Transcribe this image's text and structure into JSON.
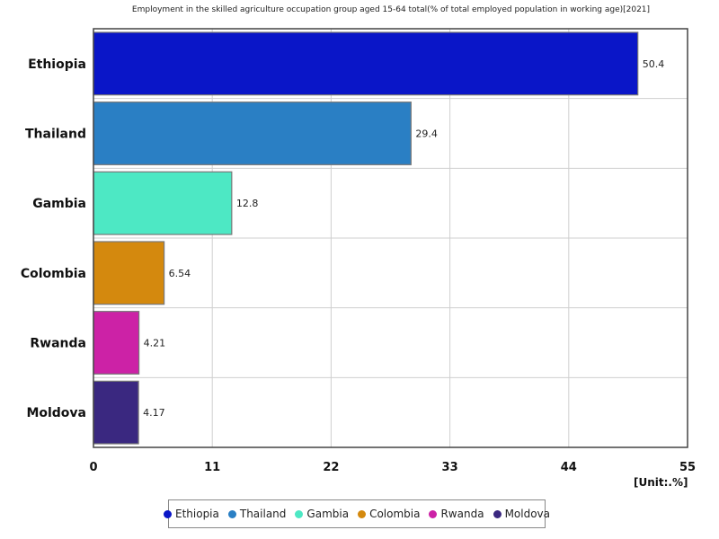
{
  "chart_data": {
    "type": "bar",
    "orientation": "horizontal",
    "title": "Employment in the skilled agriculture occupation group aged 15-64 total(% of total employed population in working age)[2021]",
    "categories": [
      "Ethiopia",
      "Thailand",
      "Gambia",
      "Colombia",
      "Rwanda",
      "Moldova"
    ],
    "values": [
      50.4,
      29.4,
      12.8,
      6.54,
      4.21,
      4.17
    ],
    "value_labels": [
      "50.4",
      "29.4",
      "12.8",
      "6.54",
      "4.21",
      "4.17"
    ],
    "colors": [
      "#0a16c8",
      "#2a7fc4",
      "#4de8c4",
      "#d4890e",
      "#cc22a6",
      "#3a2880"
    ],
    "xlim": [
      0,
      55
    ],
    "xticks": [
      "0",
      "11",
      "22",
      "33",
      "44",
      "55"
    ],
    "grid": true,
    "legend_position": "bottom",
    "unit": "[Unit:.%]"
  }
}
